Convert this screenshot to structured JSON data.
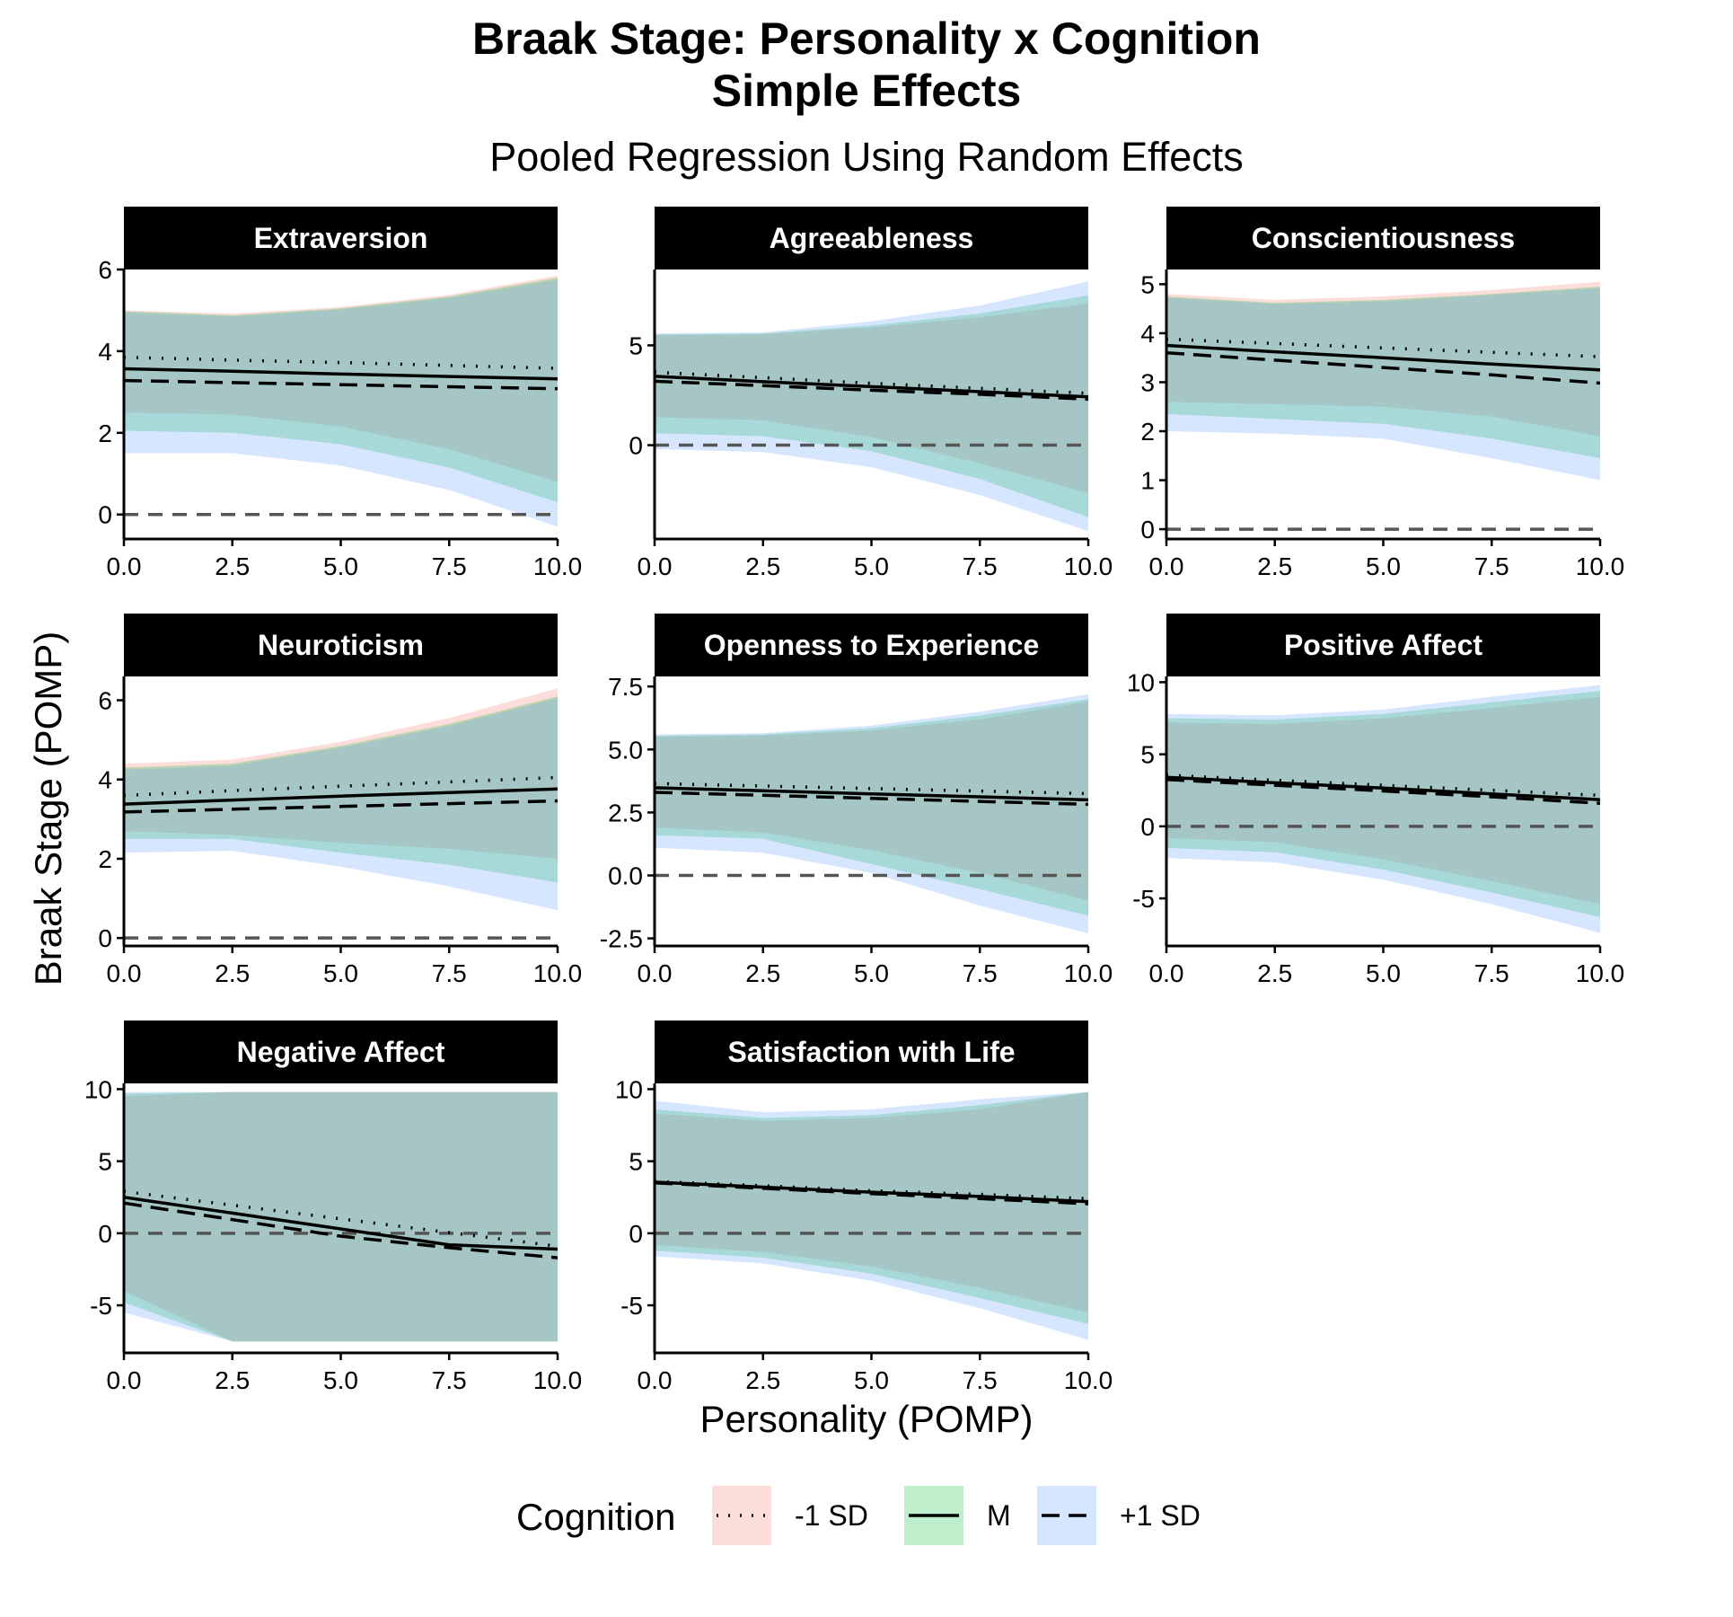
{
  "title_line1": "Braak Stage: Personality x Cognition",
  "title_line2": "Simple Effects",
  "subtitle": "Pooled Regression Using Random Effects",
  "x_axis_title": "Personality (POMP)",
  "y_axis_title": "Braak Stage (POMP)",
  "legend": {
    "title": "Cognition",
    "items": [
      {
        "label": "-1 SD",
        "linetype": "dotted",
        "fill": "#F8766D"
      },
      {
        "label": "M",
        "linetype": "solid",
        "fill": "#00BA38"
      },
      {
        "label": "+1 SD",
        "linetype": "dashed",
        "fill": "#619CFF"
      }
    ]
  },
  "colors": {
    "ribbon_low": "#F8766D",
    "ribbon_mid": "#00BA38",
    "ribbon_high": "#619CFF",
    "strip_bg": "#000000",
    "strip_text": "#ffffff",
    "ref_line": "#555555"
  },
  "chart_data": [
    {
      "type": "line",
      "title": "Extraversion",
      "xlim": [
        0,
        10
      ],
      "ylim": [
        -0.6,
        6
      ],
      "yticks": [
        0,
        2,
        4,
        6
      ],
      "ytick_labels": [
        "0",
        "2",
        "4",
        "6"
      ],
      "xticks": [
        0,
        2.5,
        5,
        7.5,
        10
      ],
      "xtick_labels": [
        "0.0",
        "2.5",
        "5.0",
        "7.5",
        "10.0"
      ],
      "x": [
        0,
        2.5,
        5,
        7.5,
        10
      ],
      "series": [
        {
          "name": "-1 SD",
          "values": [
            3.85,
            3.78,
            3.72,
            3.65,
            3.58
          ],
          "upper": [
            5.0,
            4.92,
            5.08,
            5.38,
            5.85
          ],
          "lower": [
            2.5,
            2.45,
            2.15,
            1.6,
            0.8
          ]
        },
        {
          "name": "M",
          "values": [
            3.57,
            3.51,
            3.44,
            3.38,
            3.32
          ],
          "upper": [
            4.98,
            4.88,
            5.05,
            5.34,
            5.8
          ],
          "lower": [
            2.05,
            2.0,
            1.72,
            1.15,
            0.3
          ]
        },
        {
          "name": "+1 SD",
          "values": [
            3.28,
            3.23,
            3.18,
            3.13,
            3.08
          ],
          "upper": [
            4.95,
            4.85,
            5.02,
            5.3,
            5.75
          ],
          "lower": [
            1.5,
            1.5,
            1.2,
            0.6,
            -0.3
          ]
        }
      ]
    },
    {
      "type": "line",
      "title": "Agreeableness",
      "xlim": [
        0,
        10
      ],
      "ylim": [
        -4.7,
        8.8
      ],
      "yticks": [
        0,
        5
      ],
      "ytick_labels": [
        "0",
        "5"
      ],
      "xticks": [
        0,
        2.5,
        5,
        7.5,
        10
      ],
      "xtick_labels": [
        "0.0",
        "2.5",
        "5.0",
        "7.5",
        "10.0"
      ],
      "x": [
        0,
        2.5,
        5,
        7.5,
        10
      ],
      "series": [
        {
          "name": "-1 SD",
          "values": [
            3.65,
            3.38,
            3.1,
            2.85,
            2.6
          ],
          "upper": [
            5.5,
            5.55,
            5.9,
            6.4,
            7.1
          ],
          "lower": [
            1.4,
            1.25,
            0.4,
            -0.9,
            -2.4
          ]
        },
        {
          "name": "M",
          "values": [
            3.45,
            3.18,
            2.93,
            2.68,
            2.42
          ],
          "upper": [
            5.55,
            5.6,
            6.0,
            6.6,
            7.5
          ],
          "lower": [
            0.6,
            0.45,
            -0.3,
            -1.7,
            -3.6
          ]
        },
        {
          "name": "+1 SD",
          "values": [
            3.2,
            2.98,
            2.75,
            2.55,
            2.3
          ],
          "upper": [
            5.6,
            5.65,
            6.2,
            7.0,
            8.2
          ],
          "lower": [
            -0.2,
            -0.35,
            -1.1,
            -2.5,
            -4.3
          ]
        }
      ]
    },
    {
      "type": "line",
      "title": "Conscientiousness",
      "xlim": [
        0,
        10
      ],
      "ylim": [
        -0.2,
        5.3
      ],
      "yticks": [
        0,
        1,
        2,
        3,
        4,
        5
      ],
      "ytick_labels": [
        "0",
        "1",
        "2",
        "3",
        "4",
        "5"
      ],
      "xticks": [
        0,
        2.5,
        5,
        7.5,
        10
      ],
      "xtick_labels": [
        "0.0",
        "2.5",
        "5.0",
        "7.5",
        "10.0"
      ],
      "x": [
        0,
        2.5,
        5,
        7.5,
        10
      ],
      "series": [
        {
          "name": "-1 SD",
          "values": [
            3.88,
            3.79,
            3.7,
            3.61,
            3.52
          ],
          "upper": [
            4.8,
            4.68,
            4.75,
            4.88,
            5.05
          ],
          "lower": [
            2.6,
            2.55,
            2.5,
            2.3,
            1.9
          ]
        },
        {
          "name": "M",
          "values": [
            3.75,
            3.62,
            3.5,
            3.37,
            3.25
          ],
          "upper": [
            4.75,
            4.62,
            4.68,
            4.8,
            4.95
          ],
          "lower": [
            2.35,
            2.25,
            2.15,
            1.85,
            1.45
          ]
        },
        {
          "name": "+1 SD",
          "values": [
            3.6,
            3.45,
            3.3,
            3.15,
            2.98
          ],
          "upper": [
            4.72,
            4.6,
            4.65,
            4.78,
            4.92
          ],
          "lower": [
            2.0,
            1.95,
            1.85,
            1.45,
            1.0
          ]
        }
      ]
    },
    {
      "type": "line",
      "title": "Neuroticism",
      "xlim": [
        0,
        10
      ],
      "ylim": [
        -0.2,
        6.6
      ],
      "yticks": [
        0,
        2,
        4,
        6
      ],
      "ytick_labels": [
        "0",
        "2",
        "4",
        "6"
      ],
      "xticks": [
        0,
        2.5,
        5,
        7.5,
        10
      ],
      "xtick_labels": [
        "0.0",
        "2.5",
        "5.0",
        "7.5",
        "10.0"
      ],
      "x": [
        0,
        2.5,
        5,
        7.5,
        10
      ],
      "series": [
        {
          "name": "-1 SD",
          "values": [
            3.6,
            3.72,
            3.83,
            3.94,
            4.05
          ],
          "upper": [
            4.4,
            4.5,
            4.95,
            5.55,
            6.3
          ],
          "lower": [
            2.7,
            2.6,
            2.4,
            2.25,
            2.0
          ]
        },
        {
          "name": "M",
          "values": [
            3.38,
            3.48,
            3.58,
            3.67,
            3.76
          ],
          "upper": [
            4.3,
            4.4,
            4.85,
            5.4,
            6.1
          ],
          "lower": [
            2.5,
            2.5,
            2.15,
            1.85,
            1.4
          ]
        },
        {
          "name": "+1 SD",
          "values": [
            3.18,
            3.25,
            3.32,
            3.39,
            3.46
          ],
          "upper": [
            4.25,
            4.35,
            4.8,
            5.35,
            6.05
          ],
          "lower": [
            2.15,
            2.2,
            1.8,
            1.3,
            0.7
          ]
        }
      ]
    },
    {
      "type": "line",
      "title": "Openness to Experience",
      "xlim": [
        0,
        10
      ],
      "ylim": [
        -2.8,
        7.9
      ],
      "yticks": [
        -2.5,
        0,
        2.5,
        5,
        7.5
      ],
      "ytick_labels": [
        "-2.5",
        "0.0",
        "2.5",
        "5.0",
        "7.5"
      ],
      "xticks": [
        0,
        2.5,
        5,
        7.5,
        10
      ],
      "xtick_labels": [
        "0.0",
        "2.5",
        "5.0",
        "7.5",
        "10.0"
      ],
      "x": [
        0,
        2.5,
        5,
        7.5,
        10
      ],
      "series": [
        {
          "name": "-1 SD",
          "values": [
            3.65,
            3.55,
            3.45,
            3.35,
            3.25
          ],
          "upper": [
            5.5,
            5.55,
            5.75,
            6.2,
            6.9
          ],
          "lower": [
            1.9,
            1.7,
            1.0,
            0.1,
            -1.0
          ]
        },
        {
          "name": "M",
          "values": [
            3.48,
            3.36,
            3.24,
            3.12,
            3.0
          ],
          "upper": [
            5.55,
            5.6,
            5.85,
            6.35,
            7.0
          ],
          "lower": [
            1.6,
            1.45,
            0.45,
            -0.55,
            -1.6
          ]
        },
        {
          "name": "+1 SD",
          "values": [
            3.3,
            3.18,
            3.06,
            2.94,
            2.82
          ],
          "upper": [
            5.6,
            5.65,
            5.95,
            6.5,
            7.2
          ],
          "lower": [
            1.1,
            0.9,
            0.1,
            -1.2,
            -2.3
          ]
        }
      ]
    },
    {
      "type": "line",
      "title": "Positive Affect",
      "xlim": [
        0,
        10
      ],
      "ylim": [
        -8.3,
        10.4
      ],
      "yticks": [
        -5,
        0,
        5,
        10
      ],
      "ytick_labels": [
        "-5",
        "0",
        "5",
        "10"
      ],
      "xticks": [
        0,
        2.5,
        5,
        7.5,
        10
      ],
      "xtick_labels": [
        "0.0",
        "2.5",
        "5.0",
        "7.5",
        "10.0"
      ],
      "x": [
        0,
        2.5,
        5,
        7.5,
        10
      ],
      "series": [
        {
          "name": "-1 SD",
          "values": [
            3.55,
            3.2,
            2.85,
            2.5,
            2.15
          ],
          "upper": [
            7.2,
            7.1,
            7.5,
            8.2,
            9.0
          ],
          "lower": [
            -0.8,
            -1.1,
            -2.3,
            -3.8,
            -5.4
          ]
        },
        {
          "name": "M",
          "values": [
            3.4,
            3.02,
            2.65,
            2.25,
            1.85
          ],
          "upper": [
            7.5,
            7.4,
            7.8,
            8.6,
            9.4
          ],
          "lower": [
            -1.5,
            -1.8,
            -3.0,
            -4.6,
            -6.3
          ]
        },
        {
          "name": "+1 SD",
          "values": [
            3.25,
            2.85,
            2.45,
            2.05,
            1.6
          ],
          "upper": [
            7.8,
            7.7,
            8.1,
            9.0,
            9.8
          ],
          "lower": [
            -2.2,
            -2.5,
            -3.7,
            -5.4,
            -7.4
          ]
        }
      ]
    },
    {
      "type": "line",
      "title": "Negative Affect",
      "xlim": [
        0,
        10
      ],
      "ylim": [
        -8.3,
        10.4
      ],
      "yticks": [
        -5,
        0,
        5,
        10
      ],
      "ytick_labels": [
        "-5",
        "0",
        "5",
        "10"
      ],
      "xticks": [
        0,
        2.5,
        5,
        7.5,
        10
      ],
      "xtick_labels": [
        "0.0",
        "2.5",
        "5.0",
        "7.5",
        "10.0"
      ],
      "x": [
        0,
        2.5,
        5,
        7.5,
        10
      ],
      "series": [
        {
          "name": "-1 SD",
          "values": [
            2.9,
            1.95,
            1.0,
            0.05,
            -0.9
          ],
          "upper": [
            9.5,
            9.8,
            9.8,
            9.8,
            9.8
          ],
          "lower": [
            -4.0,
            -7.5,
            -7.5,
            -7.5,
            -7.5
          ]
        },
        {
          "name": "M",
          "values": [
            2.5,
            1.4,
            0.3,
            -0.8,
            -1.1
          ],
          "upper": [
            9.7,
            9.8,
            9.8,
            9.8,
            9.8
          ],
          "lower": [
            -4.8,
            -7.5,
            -7.5,
            -7.5,
            -7.5
          ]
        },
        {
          "name": "+1 SD",
          "values": [
            2.1,
            0.95,
            -0.2,
            -1.0,
            -1.7
          ],
          "upper": [
            9.8,
            9.8,
            9.8,
            9.8,
            9.8
          ],
          "lower": [
            -5.5,
            -7.5,
            -7.5,
            -7.5,
            -7.5
          ]
        }
      ]
    },
    {
      "type": "line",
      "title": "Satisfaction with Life",
      "xlim": [
        0,
        10
      ],
      "ylim": [
        -8.3,
        10.4
      ],
      "yticks": [
        -5,
        0,
        5,
        10
      ],
      "ytick_labels": [
        "-5",
        "0",
        "5",
        "10"
      ],
      "xticks": [
        0,
        2.5,
        5,
        7.5,
        10
      ],
      "xtick_labels": [
        "0.0",
        "2.5",
        "5.0",
        "7.5",
        "10.0"
      ],
      "x": [
        0,
        2.5,
        5,
        7.5,
        10
      ],
      "series": [
        {
          "name": "-1 SD",
          "values": [
            3.6,
            3.3,
            2.95,
            2.7,
            2.4
          ],
          "upper": [
            8.3,
            7.8,
            8.0,
            8.6,
            9.8
          ],
          "lower": [
            -0.8,
            -1.3,
            -2.3,
            -3.8,
            -5.5
          ]
        },
        {
          "name": "M",
          "values": [
            3.55,
            3.2,
            2.85,
            2.55,
            2.2
          ],
          "upper": [
            8.6,
            8.0,
            8.2,
            8.9,
            9.8
          ],
          "lower": [
            -1.2,
            -1.7,
            -2.8,
            -4.5,
            -6.3
          ]
        },
        {
          "name": "+1 SD",
          "values": [
            3.5,
            3.12,
            2.75,
            2.4,
            2.05
          ],
          "upper": [
            9.2,
            8.4,
            8.6,
            9.3,
            9.8
          ],
          "lower": [
            -1.6,
            -2.1,
            -3.3,
            -5.2,
            -7.4
          ]
        }
      ]
    }
  ]
}
